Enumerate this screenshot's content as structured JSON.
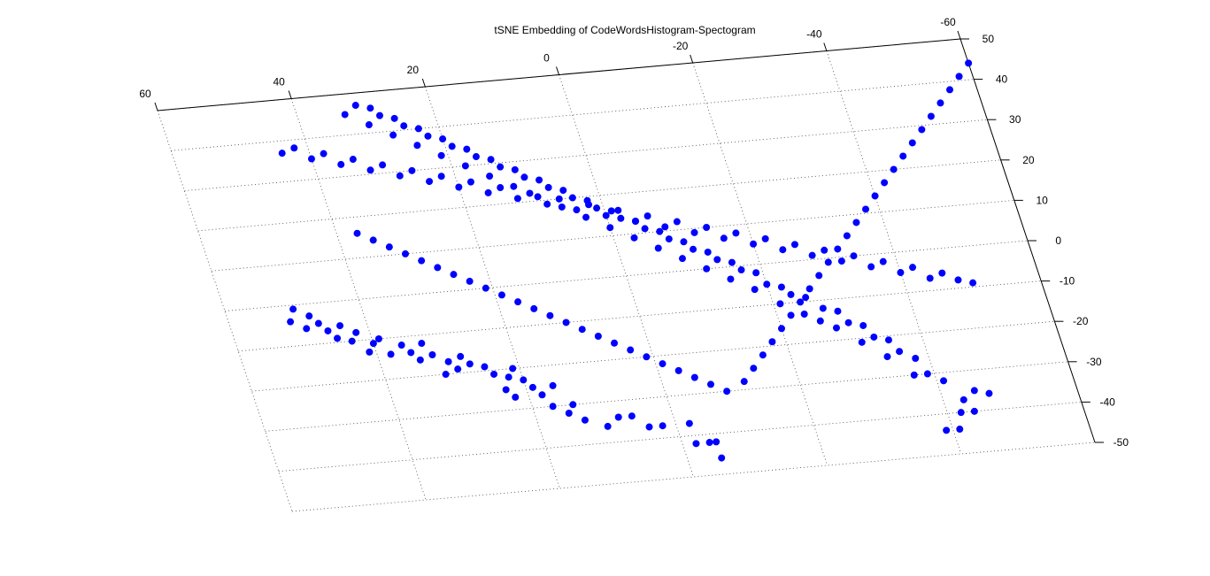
{
  "chart_data": {
    "type": "scatter",
    "title": "tSNE Embedding of CodeWordsHistogram-Spectogram",
    "xlabel": "",
    "ylabel": "",
    "projection": "3d",
    "grid": true,
    "marker_color": "#0000ff",
    "xlim": [
      -60,
      60
    ],
    "ylim": [
      -50,
      50
    ],
    "x_ticks": [
      "60",
      "40",
      "20",
      "0",
      "-20",
      "-40",
      "-60"
    ],
    "y_ticks": [
      "50",
      "40",
      "30",
      "20",
      "10",
      "0",
      "-10",
      "-20",
      "-30",
      "-40",
      "-50"
    ],
    "points": [
      [
        -5.0,
        -42.0
      ],
      [
        -5.0,
        -46.0
      ],
      [
        -4.0,
        -42.0
      ],
      [
        -2.0,
        -42.0
      ],
      [
        -2.0,
        -37.0
      ],
      [
        2.0,
        -37.0
      ],
      [
        4.0,
        -37.0
      ],
      [
        6.0,
        -34.0
      ],
      [
        8.0,
        -34.0
      ],
      [
        10.0,
        -36.0
      ],
      [
        13.0,
        -34.0
      ],
      [
        14.0,
        -30.0
      ],
      [
        15.0,
        -32.0
      ],
      [
        17.0,
        -30.0
      ],
      [
        16.0,
        -25.0
      ],
      [
        18.0,
        -27.0
      ],
      [
        19.0,
        -25.0
      ],
      [
        22.0,
        -27.0
      ],
      [
        23.0,
        -25.0
      ],
      [
        20.0,
        -23.0
      ],
      [
        21.0,
        -20.0
      ],
      [
        22.0,
        -22.0
      ],
      [
        24.0,
        -21.0
      ],
      [
        25.0,
        -19.0
      ],
      [
        27.0,
        -18.0
      ],
      [
        28.0,
        -16.0
      ],
      [
        29.0,
        -19.0
      ],
      [
        31.0,
        -20.0
      ],
      [
        30.0,
        -17.0
      ],
      [
        32.0,
        -15.0
      ],
      [
        34.0,
        -16.0
      ],
      [
        33.0,
        -12.0
      ],
      [
        35.0,
        -14.0
      ],
      [
        36.0,
        -12.0
      ],
      [
        38.0,
        -14.0
      ],
      [
        39.0,
        -10.0
      ],
      [
        40.0,
        -11.0
      ],
      [
        41.0,
        -13.0
      ],
      [
        43.0,
        -10.0
      ],
      [
        42.0,
        -8.0
      ],
      [
        44.0,
        -6.0
      ],
      [
        45.0,
        -9.0
      ],
      [
        46.0,
        -7.0
      ],
      [
        47.0,
        -5.0
      ],
      [
        49.0,
        -6.0
      ],
      [
        48.0,
        -3.0
      ],
      [
        50.0,
        -1.0
      ],
      [
        51.0,
        -4.0
      ],
      [
        -39.0,
        -44.0
      ],
      [
        -41.0,
        -44.0
      ],
      [
        -42.0,
        -40.0
      ],
      [
        -44.0,
        -40.0
      ],
      [
        -43.0,
        -37.0
      ],
      [
        -45.0,
        -35.0
      ],
      [
        -47.0,
        -36.0
      ],
      [
        -41.0,
        -32.0
      ],
      [
        -39.0,
        -30.0
      ],
      [
        -37.0,
        -30.0
      ],
      [
        -38.0,
        -26.0
      ],
      [
        -36.0,
        -24.0
      ],
      [
        -34.0,
        -25.0
      ],
      [
        -35.0,
        -21.0
      ],
      [
        -33.0,
        -20.0
      ],
      [
        -31.0,
        -21.0
      ],
      [
        -32.0,
        -17.0
      ],
      [
        -30.0,
        -16.0
      ],
      [
        -28.0,
        -17.0
      ],
      [
        -29.0,
        -13.0
      ],
      [
        -27.0,
        -12.0
      ],
      [
        -26.0,
        -15.0
      ],
      [
        -24.0,
        -13.0
      ],
      [
        -25.0,
        -9.0
      ],
      [
        -23.0,
        -8.0
      ],
      [
        -21.0,
        -10.0
      ],
      [
        -22.0,
        -6.0
      ],
      [
        -20.0,
        -5.0
      ],
      [
        -18.0,
        -6.0
      ],
      [
        -19.0,
        -2.0
      ],
      [
        -17.0,
        -1.0
      ],
      [
        -15.0,
        -3.0
      ],
      [
        -16.0,
        1.0
      ],
      [
        -14.0,
        2.0
      ],
      [
        -12.0,
        0.0
      ],
      [
        -13.0,
        4.0
      ],
      [
        -11.0,
        5.0
      ],
      [
        -9.0,
        3.0
      ],
      [
        -10.0,
        7.0
      ],
      [
        -8.0,
        8.0
      ],
      [
        -6.0,
        6.0
      ],
      [
        -7.0,
        10.0
      ],
      [
        -5.0,
        11.0
      ],
      [
        -3.0,
        9.0
      ],
      [
        -4.0,
        13.0
      ],
      [
        -2.0,
        14.0
      ],
      [
        0.0,
        12.0
      ],
      [
        -1.0,
        16.0
      ],
      [
        1.0,
        17.0
      ],
      [
        3.0,
        15.0
      ],
      [
        2.0,
        19.0
      ],
      [
        4.0,
        20.0
      ],
      [
        6.0,
        18.0
      ],
      [
        5.0,
        22.0
      ],
      [
        7.0,
        23.0
      ],
      [
        9.0,
        21.0
      ],
      [
        8.0,
        25.0
      ],
      [
        10.0,
        26.0
      ],
      [
        12.0,
        24.0
      ],
      [
        11.0,
        28.0
      ],
      [
        13.0,
        29.0
      ],
      [
        15.0,
        27.0
      ],
      [
        14.0,
        31.0
      ],
      [
        16.0,
        32.0
      ],
      [
        18.0,
        30.0
      ],
      [
        17.0,
        34.0
      ],
      [
        19.0,
        35.0
      ],
      [
        21.0,
        33.0
      ],
      [
        20.0,
        37.0
      ],
      [
        22.0,
        38.0
      ],
      [
        24.0,
        36.0
      ],
      [
        23.0,
        40.0
      ],
      [
        25.0,
        41.0
      ],
      [
        27.0,
        39.0
      ],
      [
        26.0,
        43.0
      ],
      [
        28.0,
        44.0
      ],
      [
        30.0,
        42.0
      ],
      [
        29.0,
        46.0
      ],
      [
        31.0,
        47.0
      ],
      [
        33.0,
        45.0
      ],
      [
        -48.0,
        -8.0
      ],
      [
        -50.0,
        -9.0
      ],
      [
        -46.0,
        -6.0
      ],
      [
        -44.0,
        -7.0
      ],
      [
        -42.0,
        -4.0
      ],
      [
        -40.0,
        -5.0
      ],
      [
        -38.0,
        -2.0
      ],
      [
        -36.0,
        -3.0
      ],
      [
        -34.0,
        0.0
      ],
      [
        -32.0,
        -1.0
      ],
      [
        -30.0,
        2.0
      ],
      [
        -28.0,
        1.0
      ],
      [
        -26.0,
        4.0
      ],
      [
        -24.0,
        3.0
      ],
      [
        -22.0,
        6.0
      ],
      [
        -20.0,
        5.0
      ],
      [
        -18.0,
        8.0
      ],
      [
        -16.0,
        7.0
      ],
      [
        -14.0,
        10.0
      ],
      [
        -12.0,
        9.0
      ],
      [
        -10.0,
        12.0
      ],
      [
        -8.0,
        11.0
      ],
      [
        -6.0,
        14.0
      ],
      [
        -4.0,
        13.0
      ],
      [
        -2.0,
        16.0
      ],
      [
        0.0,
        15.0
      ],
      [
        2.0,
        18.0
      ],
      [
        4.0,
        17.0
      ],
      [
        6.0,
        20.0
      ],
      [
        8.0,
        19.0
      ],
      [
        10.0,
        22.0
      ],
      [
        12.0,
        21.0
      ],
      [
        14.0,
        24.0
      ],
      [
        16.0,
        23.0
      ],
      [
        18.0,
        26.0
      ],
      [
        20.0,
        25.0
      ],
      [
        22.0,
        28.0
      ],
      [
        24.0,
        27.0
      ],
      [
        26.0,
        30.0
      ],
      [
        28.0,
        29.0
      ],
      [
        30.0,
        32.0
      ],
      [
        32.0,
        31.0
      ],
      [
        34.0,
        34.0
      ],
      [
        36.0,
        33.0
      ],
      [
        38.0,
        36.0
      ],
      [
        40.0,
        35.0
      ],
      [
        42.0,
        38.0
      ],
      [
        44.0,
        37.0
      ],
      [
        -9.0,
        -30.0
      ],
      [
        -7.0,
        -28.0
      ],
      [
        -5.0,
        -26.0
      ],
      [
        -3.0,
        -24.0
      ],
      [
        -1.0,
        -22.0
      ],
      [
        1.0,
        -20.0
      ],
      [
        3.0,
        -18.0
      ],
      [
        5.0,
        -16.0
      ],
      [
        7.0,
        -14.0
      ],
      [
        9.0,
        -12.0
      ],
      [
        11.0,
        -10.0
      ],
      [
        13.0,
        -8.0
      ],
      [
        15.0,
        -6.0
      ],
      [
        17.0,
        -4.0
      ],
      [
        19.0,
        -2.0
      ],
      [
        21.0,
        0.0
      ],
      [
        23.0,
        2.0
      ],
      [
        25.0,
        4.0
      ],
      [
        27.0,
        6.0
      ],
      [
        29.0,
        8.0
      ],
      [
        31.0,
        10.0
      ],
      [
        33.0,
        12.0
      ],
      [
        35.0,
        14.0
      ],
      [
        37.0,
        16.0
      ],
      [
        -12.0,
        -28.0
      ],
      [
        -14.0,
        -25.0
      ],
      [
        -16.0,
        -22.0
      ],
      [
        -18.0,
        -19.0
      ],
      [
        -20.0,
        -16.0
      ],
      [
        -22.0,
        -13.0
      ],
      [
        -24.0,
        -10.0
      ],
      [
        -26.0,
        -7.0
      ],
      [
        -28.0,
        -4.0
      ],
      [
        -30.0,
        -1.0
      ],
      [
        -32.0,
        2.0
      ],
      [
        -34.0,
        5.0
      ],
      [
        -36.0,
        8.0
      ],
      [
        -38.0,
        11.0
      ],
      [
        -40.0,
        14.0
      ],
      [
        -42.0,
        17.0
      ],
      [
        -44.0,
        20.0
      ],
      [
        -46.0,
        23.0
      ],
      [
        -48.0,
        26.0
      ],
      [
        -50.0,
        29.0
      ],
      [
        -52.0,
        32.0
      ],
      [
        -54.0,
        35.0
      ],
      [
        -56.0,
        38.0
      ],
      [
        -58.0,
        41.0
      ],
      [
        -60.0,
        44.0
      ]
    ]
  }
}
